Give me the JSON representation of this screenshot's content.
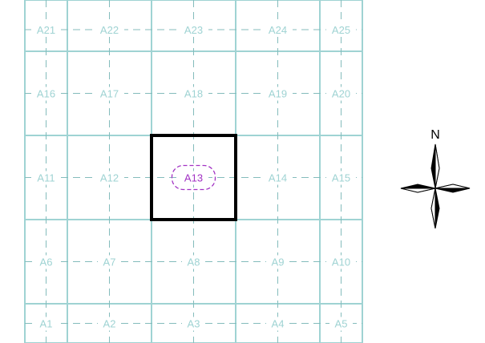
{
  "map": {
    "rows": [
      [
        "A21",
        "A22",
        "A23",
        "A24",
        "A25"
      ],
      [
        "A16",
        "A17",
        "A18",
        "A19",
        "A20"
      ],
      [
        "A11",
        "A12",
        "A13",
        "A14",
        "A15"
      ],
      [
        "A6",
        "A7",
        "A8",
        "A9",
        "A10"
      ],
      [
        "A1",
        "A2",
        "A3",
        "A4",
        "A5"
      ]
    ],
    "highlighted_tile": "A13",
    "grid_color": "#9fd3d3",
    "highlight_color": "#000000",
    "marker_color": "#a233c4",
    "dash_color": "#84bcbc"
  },
  "compass": {
    "north_label": "N",
    "icon": "compass-rose-icon"
  }
}
